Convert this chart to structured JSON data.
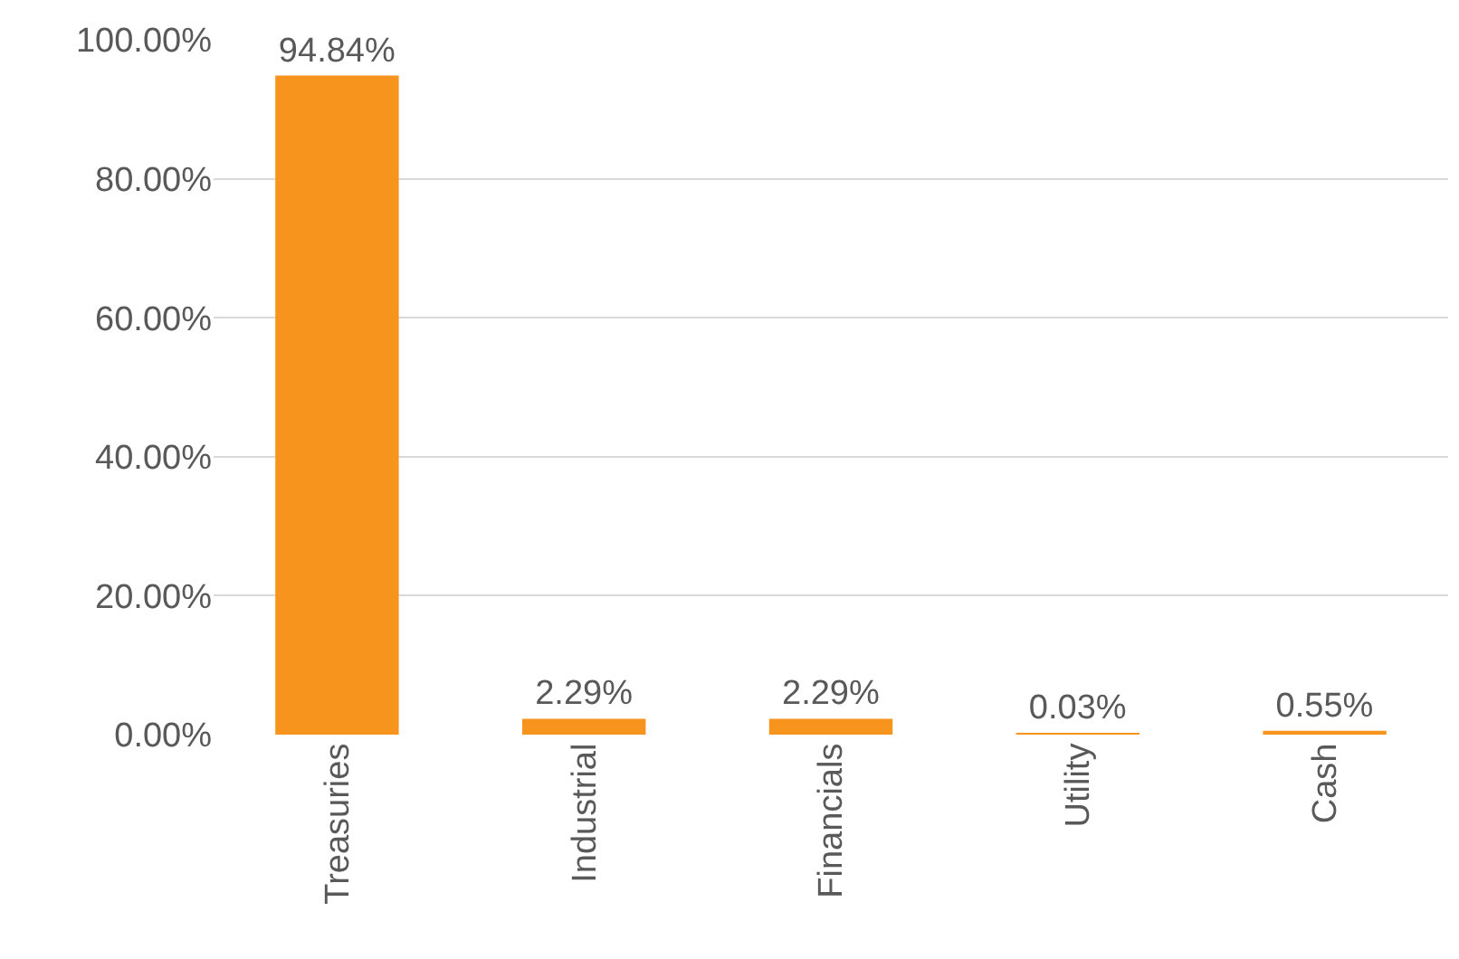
{
  "chart_data": {
    "type": "bar",
    "categories": [
      "Treasuries",
      "Industrial",
      "Financials",
      "Utility",
      "Cash"
    ],
    "values": [
      94.84,
      2.29,
      2.29,
      0.03,
      0.55
    ],
    "value_labels": [
      "94.84%",
      "2.29%",
      "2.29%",
      "0.03%",
      "0.55%"
    ],
    "color": "#f7941d",
    "ylim": [
      0,
      100
    ],
    "yticks": [
      {
        "value": 0,
        "label": "0.00%"
      },
      {
        "value": 20,
        "label": "20.00%"
      },
      {
        "value": 40,
        "label": "40.00%"
      },
      {
        "value": 60,
        "label": "60.00%"
      },
      {
        "value": 80,
        "label": "80.00%"
      },
      {
        "value": 100,
        "label": "100.00%"
      }
    ],
    "grid": "y"
  }
}
